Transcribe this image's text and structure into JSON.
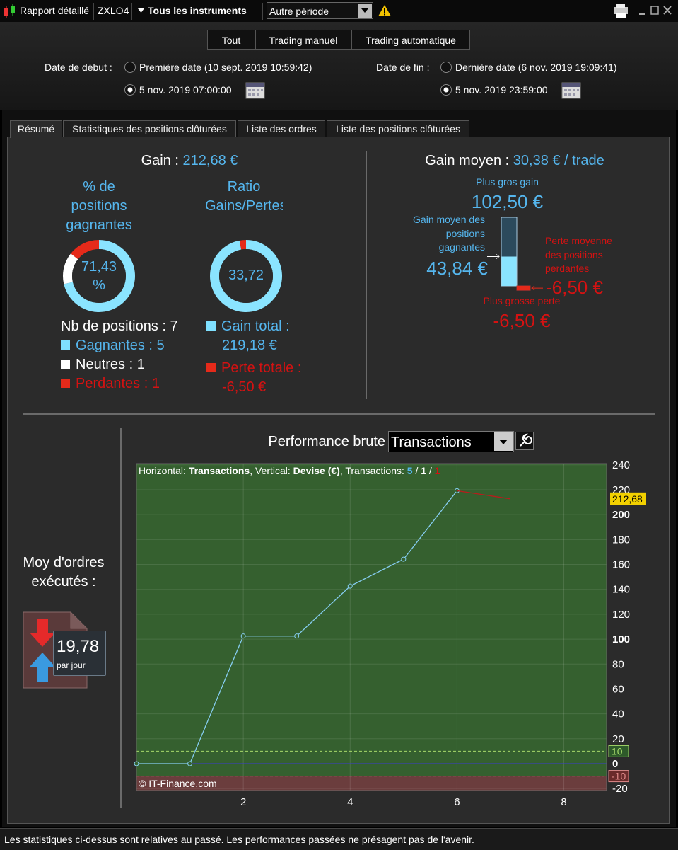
{
  "toolbar": {
    "title": "Rapport détaillé",
    "symbol": "ZXLO4",
    "instruments": "Tous les instruments",
    "period": "Autre période"
  },
  "filters": [
    "Tout",
    "Trading manuel",
    "Trading automatique"
  ],
  "dates": {
    "start_label": "Date de début :",
    "start_first": "Première date (10 sept. 2019 10:59:42)",
    "start_custom": "5 nov. 2019 07:00:00",
    "end_label": "Date de fin :",
    "end_last": "Dernière date (6 nov. 2019 19:09:41)",
    "end_custom": "5 nov. 2019 23:59:00"
  },
  "tabs": [
    "Résumé",
    "Statistiques des positions clôturées",
    "Liste des ordres",
    "Liste des positions clôturées"
  ],
  "summary": {
    "gain_label": "Gain :",
    "gain": "212,68 €",
    "win_pct_title": "% de positions gagnantes",
    "win_pct": "71,43 %",
    "ratio_title": "Ratio Gains/Pertes",
    "ratio": "33,72",
    "positions_label": "Nb de positions :",
    "positions": 7,
    "winners_label": "Gagnantes :",
    "winners": 5,
    "neutral_label": "Neutres :",
    "neutral": 1,
    "losers_label": "Perdantes :",
    "losers": 1,
    "gain_total": {
      "label": "Gain total :",
      "value": 219.18,
      "value_label": "219,18 €"
    },
    "loss_total": {
      "label": "Perte totale :",
      "value": -6.5,
      "value_label": "-6,50 €"
    }
  },
  "gain_moyen": {
    "label": "Gain moyen :",
    "value_label": "30,38 € / trade",
    "biggest_gain": {
      "label": "Plus gros gain",
      "value": 102.5,
      "value_label": "102,50 €"
    },
    "avg_win": {
      "label": "Gain moyen des positions gagnantes",
      "value": 43.84,
      "value_label": "43,84 €"
    },
    "avg_loss": {
      "label": "Perte moyenne des positions perdantes",
      "value": -6.5,
      "value_label": "-6,50 €"
    },
    "biggest_loss": {
      "label": "Plus grosse perte",
      "value": -6.5,
      "value_label": "-6,50 €"
    }
  },
  "orders": {
    "label": "Moy d'ordres exécutés :",
    "value": "19,78",
    "unit": "par jour"
  },
  "performance": {
    "title": "Performance brute",
    "mode": "Transactions"
  },
  "chart_data": {
    "type": "line",
    "info": {
      "h_label": "Horizontal:",
      "h_value": "Transactions",
      "v_label": ", Vertical:",
      "v_value": "Devise (€)",
      "t_label": ", Transactions:",
      "t_win": "5",
      "sep": "/",
      "t_neutral": "1",
      "t_loss": "1"
    },
    "series": [
      {
        "color": "#86cdf0",
        "markers": true,
        "x": [
          0,
          1,
          2,
          3,
          4,
          5,
          6
        ],
        "values": [
          0,
          0,
          102.5,
          102.5,
          142.6,
          164.2,
          219.18
        ]
      },
      {
        "color": "#b81c1c",
        "markers": false,
        "x": [
          6,
          7
        ],
        "values": [
          219.18,
          212.68
        ]
      }
    ],
    "xlim": [
      0,
      8.8
    ],
    "xticks": [
      2,
      4,
      6,
      8
    ],
    "ylim": [
      -21.6,
      241
    ],
    "yticks": [
      -20,
      0,
      20,
      40,
      60,
      80,
      100,
      120,
      140,
      160,
      180,
      200,
      220,
      240
    ],
    "grid": true,
    "background": "#35602f",
    "ref_lines": [
      {
        "value": 10,
        "color": "#a6d86a",
        "dashed": true,
        "box": "#2e5a2a"
      },
      {
        "value": 0,
        "color": "#3a3ad0",
        "dashed": false
      },
      {
        "value": -10,
        "color": "#e08a8a",
        "dashed": true,
        "box": "#6a2a2a",
        "fill_below": "#6b3d3d"
      }
    ],
    "last_value": {
      "value": 212.68,
      "label": "212,68"
    },
    "watermark": "© IT-Finance.com"
  },
  "footer": "Les statistiques ci-dessus sont relatives au passé. Les performances passées ne présagent pas de l'avenir."
}
